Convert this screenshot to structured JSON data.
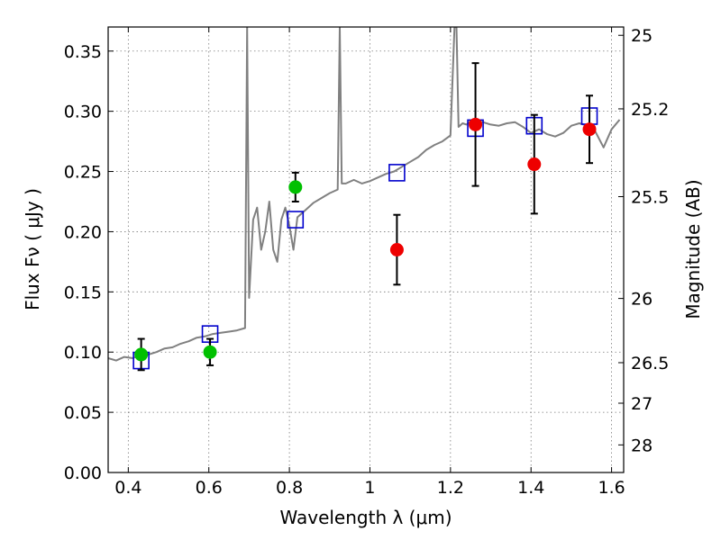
{
  "chart_data": {
    "type": "scatter",
    "title": "",
    "xlabel": "Wavelength  λ (μm)",
    "ylabel": "Flux  Fν  ( μJy )",
    "ylabel_right": "Magnitude (AB)",
    "xlim": [
      0.35,
      1.63
    ],
    "ylim": [
      0.0,
      0.37
    ],
    "grid": true,
    "x_ticks": [
      {
        "value": 0.4,
        "label": "0.4"
      },
      {
        "value": 0.6,
        "label": "0.6"
      },
      {
        "value": 0.8,
        "label": "0.8"
      },
      {
        "value": 1.0,
        "label": "1"
      },
      {
        "value": 1.2,
        "label": "1.2"
      },
      {
        "value": 1.4,
        "label": "1.4"
      },
      {
        "value": 1.6,
        "label": "1.6"
      }
    ],
    "y_ticks": [
      {
        "value": 0.0,
        "label": "0.00"
      },
      {
        "value": 0.05,
        "label": "0.05"
      },
      {
        "value": 0.1,
        "label": "0.10"
      },
      {
        "value": 0.15,
        "label": "0.15"
      },
      {
        "value": 0.2,
        "label": "0.20"
      },
      {
        "value": 0.25,
        "label": "0.25"
      },
      {
        "value": 0.3,
        "label": "0.30"
      },
      {
        "value": 0.35,
        "label": "0.35"
      }
    ],
    "right_ticks": [
      {
        "magnitude": 25,
        "label": "25"
      },
      {
        "magnitude": 25.2,
        "label": "25.2"
      },
      {
        "magnitude": 25.5,
        "label": "25.5"
      },
      {
        "magnitude": 26,
        "label": "26"
      },
      {
        "magnitude": 26.5,
        "label": "26.5"
      },
      {
        "magnitude": 27,
        "label": "27"
      },
      {
        "magnitude": 28,
        "label": "28"
      }
    ],
    "colors": {
      "model_line": "#808080",
      "model_points": "#0000cc",
      "green_points": "#00c000",
      "red_points": "#ee0000",
      "error_bars": "#000000"
    },
    "series": [
      {
        "kind": "line",
        "x": [
          0.35,
          0.37,
          0.39,
          0.41,
          0.43,
          0.45,
          0.47,
          0.49,
          0.51,
          0.53,
          0.55,
          0.57,
          0.59,
          0.61,
          0.63,
          0.65,
          0.67,
          0.69,
          0.695,
          0.7,
          0.71,
          0.72,
          0.73,
          0.74,
          0.75,
          0.76,
          0.77,
          0.78,
          0.79,
          0.8,
          0.81,
          0.82,
          0.84,
          0.86,
          0.88,
          0.9,
          0.92,
          0.925,
          0.93,
          0.94,
          0.96,
          0.98,
          1.0,
          1.02,
          1.04,
          1.06,
          1.08,
          1.1,
          1.12,
          1.14,
          1.16,
          1.18,
          1.2,
          1.21,
          1.215,
          1.22,
          1.23,
          1.24,
          1.25,
          1.26,
          1.28,
          1.3,
          1.32,
          1.34,
          1.36,
          1.38,
          1.4,
          1.42,
          1.44,
          1.46,
          1.48,
          1.5,
          1.52,
          1.54,
          1.56,
          1.58,
          1.6,
          1.62
        ],
        "y": [
          0.095,
          0.093,
          0.096,
          0.095,
          0.097,
          0.098,
          0.1,
          0.103,
          0.104,
          0.107,
          0.109,
          0.112,
          0.113,
          0.115,
          0.116,
          0.117,
          0.118,
          0.12,
          0.37,
          0.145,
          0.21,
          0.22,
          0.185,
          0.2,
          0.225,
          0.185,
          0.175,
          0.21,
          0.22,
          0.205,
          0.185,
          0.212,
          0.218,
          0.224,
          0.228,
          0.232,
          0.235,
          0.37,
          0.24,
          0.24,
          0.243,
          0.24,
          0.242,
          0.245,
          0.248,
          0.25,
          0.254,
          0.258,
          0.262,
          0.268,
          0.272,
          0.275,
          0.28,
          0.37,
          0.37,
          0.287,
          0.29,
          0.289,
          0.292,
          0.292,
          0.291,
          0.289,
          0.288,
          0.29,
          0.291,
          0.287,
          0.282,
          0.285,
          0.281,
          0.279,
          0.282,
          0.288,
          0.29,
          0.288,
          0.283,
          0.27,
          0.285,
          0.293
        ]
      },
      {
        "kind": "squares",
        "x": [
          0.432,
          0.603,
          0.815,
          1.067,
          1.262,
          1.408,
          1.545
        ],
        "y": [
          0.093,
          0.115,
          0.21,
          0.249,
          0.286,
          0.288,
          0.296
        ]
      },
      {
        "kind": "points",
        "color_key": "green_points",
        "x": [
          0.432,
          0.603,
          0.815
        ],
        "y": [
          0.098,
          0.1,
          0.237
        ],
        "err": [
          0.013,
          0.011,
          0.012
        ]
      },
      {
        "kind": "points",
        "color_key": "red_points",
        "x": [
          1.067,
          1.262,
          1.408,
          1.545
        ],
        "y": [
          0.185,
          0.289,
          0.256,
          0.285
        ],
        "err": [
          0.029,
          0.051,
          0.041,
          0.028
        ]
      }
    ]
  }
}
